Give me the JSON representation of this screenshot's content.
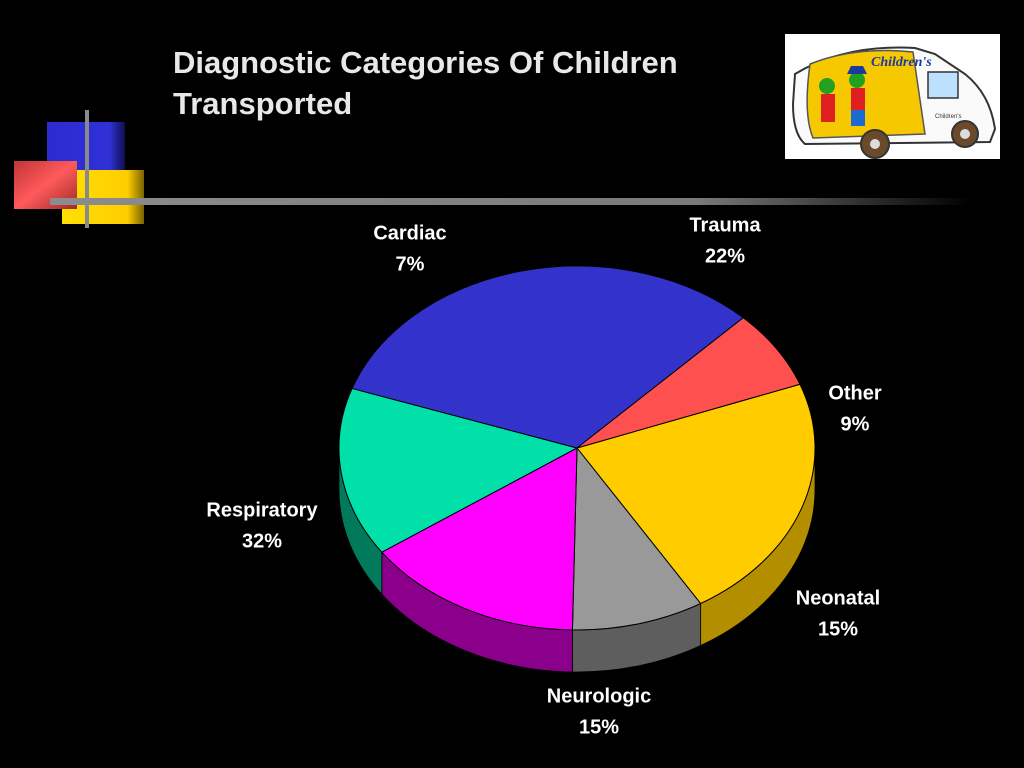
{
  "slide": {
    "title_line1": "Diagnostic Categories Of Children",
    "title_line2": "Transported",
    "logo_text": "Children's",
    "logo_subtext": "Children's"
  },
  "colors": {
    "background": "#000000",
    "deco_blue": "#2b2bd0",
    "deco_red": "#e84a4a",
    "deco_yellow": "#ffd400"
  },
  "chart_data": {
    "type": "pie",
    "style": "3d",
    "title": "",
    "slices": [
      {
        "label": "Trauma",
        "value": 22,
        "display": "22%",
        "color": "#ffcc00",
        "side_color": "#b38f00"
      },
      {
        "label": "Other",
        "value": 9,
        "display": "9%",
        "color": "#999999",
        "side_color": "#5e5e5e"
      },
      {
        "label": "Neonatal",
        "value": 15,
        "display": "15%",
        "color": "#ff00ff",
        "side_color": "#8a008a"
      },
      {
        "label": "Neurologic",
        "value": 15,
        "display": "15%",
        "color": "#00e0a8",
        "side_color": "#007a5a"
      },
      {
        "label": "Respiratory",
        "value": 32,
        "display": "32%",
        "color": "#3333cc",
        "side_color": "#1f1f70"
      },
      {
        "label": "Cardiac",
        "value": 7,
        "display": "7%",
        "color": "#ff5050",
        "side_color": "#9a2a2a"
      }
    ],
    "legend": "none",
    "labels": "outside"
  }
}
